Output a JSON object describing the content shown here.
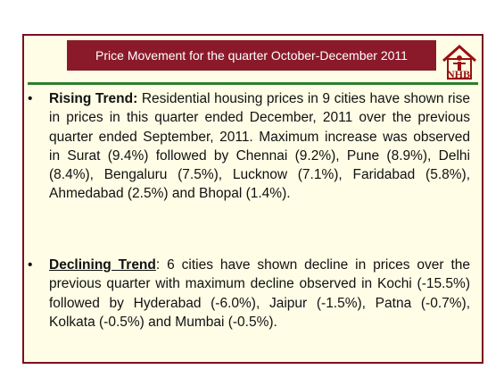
{
  "header": {
    "title": "Price Movement for the quarter October-December 2011",
    "logo": "NHB"
  },
  "bullets": [
    {
      "label": "Rising Trend:",
      "text": " Residential housing prices in 9 cities have shown rise in prices in this quarter ended December, 2011 over the previous quarter ended September, 2011. Maximum increase was observed in Surat (9.4%) followed by Chennai (9.2%), Pune (8.9%), Delhi (8.4%), Bengaluru (7.5%), Lucknow (7.1%), Faridabad (5.8%), Ahmedabad (2.5%) and Bhopal (1.4%)."
    },
    {
      "label": "Declining Trend",
      "text": ": 6 cities have shown decline in prices over the previous quarter with maximum decline observed in Kochi (-15.5%) followed by Hyderabad (-6.0%), Jaipur (-1.5%), Patna (-0.7%), Kolkata (-0.5%) and Mumbai (-0.5%)."
    }
  ]
}
